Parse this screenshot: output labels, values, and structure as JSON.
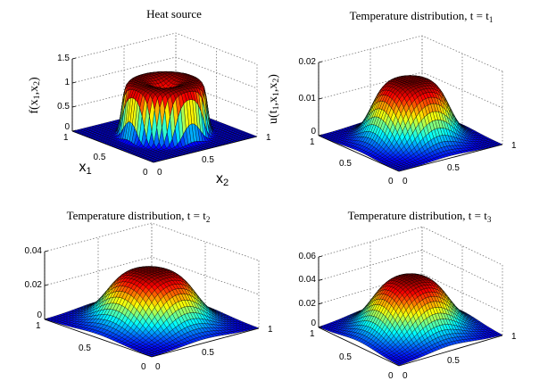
{
  "chart_data": [
    {
      "type": "surface",
      "title": "Heat source",
      "zlabel": "f(x1,x2)",
      "x1label": "x1",
      "x2label": "x2",
      "zlim": [
        0,
        1.5
      ],
      "zticks": [
        "0",
        "0.5",
        "1",
        "1.5"
      ],
      "x1ticks": [
        "0",
        "0.5",
        "1"
      ],
      "x2ticks": [
        "0",
        "0.5",
        "1"
      ],
      "function": "heat-source",
      "peak": 1.1,
      "colormap": "jet"
    },
    {
      "type": "surface",
      "title": "Temperature distribution, t = t1",
      "zlabel": "u(t1,x1,x2)",
      "x1label": "",
      "x2label": "",
      "zlim": [
        0,
        0.02
      ],
      "zticks": [
        "0",
        "0.01",
        "0.02"
      ],
      "x1ticks": [
        "0",
        "0.5",
        "1"
      ],
      "x2ticks": [
        "0",
        "0.5",
        "1"
      ],
      "function": "temperature",
      "peak": 0.0175,
      "spread": 0.06,
      "colormap": "jet"
    },
    {
      "type": "surface",
      "title": "Temperature distribution, t = t2",
      "zlabel": "",
      "x1label": "",
      "x2label": "",
      "zlim": [
        0,
        0.04
      ],
      "zticks": [
        "0",
        "0.02",
        "0.04"
      ],
      "x1ticks": [
        "0",
        "0.5",
        "1"
      ],
      "x2ticks": [
        "0",
        "0.5",
        "1"
      ],
      "function": "temperature",
      "peak": 0.034,
      "spread": 0.075,
      "colormap": "jet"
    },
    {
      "type": "surface",
      "title": "Temperature distribution, t = t3",
      "zlabel": "",
      "x1label": "",
      "x2label": "",
      "zlim": [
        0,
        0.06
      ],
      "zticks": [
        "0",
        "0.02",
        "0.04",
        "0.06"
      ],
      "x1ticks": [
        "0",
        "0.5",
        "1"
      ],
      "x2ticks": [
        "0",
        "0.5",
        "1"
      ],
      "function": "temperature",
      "peak": 0.05,
      "spread": 0.085,
      "colormap": "jet"
    }
  ]
}
